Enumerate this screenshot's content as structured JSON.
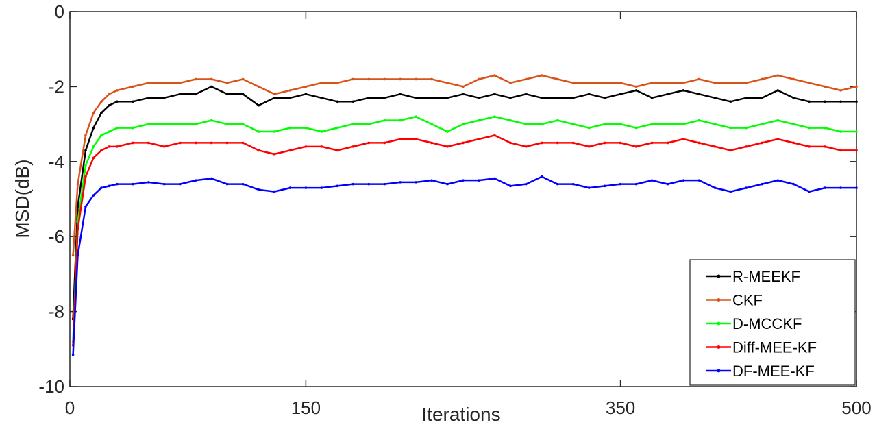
{
  "chart_data": {
    "type": "line",
    "xlabel": "Iterations",
    "ylabel": "MSD(dB)",
    "xlim": [
      0,
      500
    ],
    "ylim": [
      -10,
      0
    ],
    "xticks": [
      0,
      150,
      350,
      500
    ],
    "yticks": [
      -10,
      -8,
      -6,
      -4,
      -2,
      0
    ],
    "grid": false,
    "legend_position": "bottom-right",
    "series": [
      {
        "name": "R-MEEKF",
        "color": "#000000",
        "x": [
          2,
          5,
          10,
          15,
          20,
          25,
          30,
          40,
          50,
          60,
          70,
          80,
          90,
          100,
          110,
          120,
          130,
          140,
          150,
          160,
          170,
          180,
          190,
          200,
          210,
          220,
          230,
          240,
          250,
          260,
          270,
          280,
          290,
          300,
          310,
          320,
          330,
          340,
          350,
          360,
          370,
          380,
          390,
          400,
          410,
          420,
          430,
          440,
          450,
          460,
          470,
          480,
          490,
          500
        ],
        "values": [
          -8.2,
          -5.2,
          -3.7,
          -3.1,
          -2.7,
          -2.5,
          -2.4,
          -2.4,
          -2.3,
          -2.3,
          -2.2,
          -2.2,
          -2.0,
          -2.2,
          -2.2,
          -2.5,
          -2.3,
          -2.3,
          -2.2,
          -2.3,
          -2.4,
          -2.4,
          -2.3,
          -2.3,
          -2.2,
          -2.3,
          -2.3,
          -2.3,
          -2.2,
          -2.3,
          -2.2,
          -2.3,
          -2.2,
          -2.3,
          -2.3,
          -2.3,
          -2.2,
          -2.3,
          -2.2,
          -2.1,
          -2.3,
          -2.2,
          -2.1,
          -2.2,
          -2.3,
          -2.4,
          -2.3,
          -2.3,
          -2.1,
          -2.3,
          -2.4,
          -2.4,
          -2.4,
          -2.4
        ]
      },
      {
        "name": "CKF",
        "color": "#D95319",
        "x": [
          2,
          5,
          10,
          15,
          20,
          25,
          30,
          40,
          50,
          60,
          70,
          80,
          90,
          100,
          110,
          120,
          130,
          140,
          150,
          160,
          170,
          180,
          190,
          200,
          210,
          220,
          230,
          240,
          250,
          260,
          270,
          280,
          290,
          300,
          310,
          320,
          330,
          340,
          350,
          360,
          370,
          380,
          390,
          400,
          410,
          420,
          430,
          440,
          450,
          460,
          470,
          480,
          490,
          500
        ],
        "values": [
          -6.5,
          -4.6,
          -3.3,
          -2.7,
          -2.4,
          -2.2,
          -2.1,
          -2.0,
          -1.9,
          -1.9,
          -1.9,
          -1.8,
          -1.8,
          -1.9,
          -1.8,
          -2.0,
          -2.2,
          -2.1,
          -2.0,
          -1.9,
          -1.9,
          -1.8,
          -1.8,
          -1.8,
          -1.8,
          -1.8,
          -1.8,
          -1.9,
          -2.0,
          -1.8,
          -1.7,
          -1.9,
          -1.8,
          -1.7,
          -1.8,
          -1.9,
          -1.9,
          -1.9,
          -1.9,
          -2.0,
          -1.9,
          -1.9,
          -1.9,
          -1.8,
          -1.9,
          -1.9,
          -1.9,
          -1.8,
          -1.7,
          -1.8,
          -1.9,
          -2.0,
          -2.1,
          -2.0
        ]
      },
      {
        "name": "D-MCCKF",
        "color": "#00FF00",
        "x": [
          2,
          5,
          10,
          15,
          20,
          25,
          30,
          40,
          50,
          60,
          70,
          80,
          90,
          100,
          110,
          120,
          130,
          140,
          150,
          160,
          170,
          180,
          190,
          200,
          210,
          220,
          230,
          240,
          250,
          260,
          270,
          280,
          290,
          300,
          310,
          320,
          330,
          340,
          350,
          360,
          370,
          380,
          390,
          400,
          410,
          420,
          430,
          440,
          450,
          460,
          470,
          480,
          490,
          500
        ],
        "values": [
          -8.8,
          -5.6,
          -4.1,
          -3.6,
          -3.3,
          -3.2,
          -3.1,
          -3.1,
          -3.0,
          -3.0,
          -3.0,
          -3.0,
          -2.9,
          -3.0,
          -3.0,
          -3.2,
          -3.2,
          -3.1,
          -3.1,
          -3.2,
          -3.1,
          -3.0,
          -3.0,
          -2.9,
          -2.9,
          -2.8,
          -3.0,
          -3.2,
          -3.0,
          -2.9,
          -2.8,
          -2.9,
          -3.0,
          -3.0,
          -2.9,
          -3.0,
          -3.1,
          -3.0,
          -3.0,
          -3.1,
          -3.0,
          -3.0,
          -3.0,
          -2.9,
          -3.0,
          -3.1,
          -3.1,
          -3.0,
          -2.9,
          -3.0,
          -3.1,
          -3.1,
          -3.2,
          -3.2
        ]
      },
      {
        "name": "Diff-MEE-KF",
        "color": "#FF0000",
        "x": [
          2,
          5,
          10,
          15,
          20,
          25,
          30,
          40,
          50,
          60,
          70,
          80,
          90,
          100,
          110,
          120,
          130,
          140,
          150,
          160,
          170,
          180,
          190,
          200,
          210,
          220,
          230,
          240,
          250,
          260,
          270,
          280,
          290,
          300,
          310,
          320,
          330,
          340,
          350,
          360,
          370,
          380,
          390,
          400,
          410,
          420,
          430,
          440,
          450,
          460,
          470,
          480,
          490,
          500
        ],
        "values": [
          -8.9,
          -5.8,
          -4.4,
          -3.9,
          -3.7,
          -3.6,
          -3.6,
          -3.5,
          -3.5,
          -3.6,
          -3.5,
          -3.5,
          -3.5,
          -3.5,
          -3.5,
          -3.7,
          -3.8,
          -3.7,
          -3.6,
          -3.6,
          -3.7,
          -3.6,
          -3.5,
          -3.5,
          -3.4,
          -3.4,
          -3.5,
          -3.6,
          -3.5,
          -3.4,
          -3.3,
          -3.5,
          -3.6,
          -3.5,
          -3.5,
          -3.5,
          -3.6,
          -3.5,
          -3.5,
          -3.6,
          -3.5,
          -3.5,
          -3.4,
          -3.5,
          -3.6,
          -3.7,
          -3.6,
          -3.5,
          -3.4,
          -3.5,
          -3.6,
          -3.6,
          -3.7,
          -3.7
        ]
      },
      {
        "name": "DF-MEE-KF",
        "color": "#0000FF",
        "x": [
          2,
          5,
          10,
          15,
          20,
          25,
          30,
          40,
          50,
          60,
          70,
          80,
          90,
          100,
          110,
          120,
          130,
          140,
          150,
          160,
          170,
          180,
          190,
          200,
          210,
          220,
          230,
          240,
          250,
          260,
          270,
          280,
          290,
          300,
          310,
          320,
          330,
          340,
          350,
          360,
          370,
          380,
          390,
          400,
          410,
          420,
          430,
          440,
          450,
          460,
          470,
          480,
          490,
          500
        ],
        "values": [
          -9.15,
          -6.5,
          -5.2,
          -4.9,
          -4.7,
          -4.65,
          -4.6,
          -4.6,
          -4.55,
          -4.6,
          -4.6,
          -4.5,
          -4.45,
          -4.6,
          -4.6,
          -4.75,
          -4.8,
          -4.7,
          -4.7,
          -4.7,
          -4.65,
          -4.6,
          -4.6,
          -4.6,
          -4.55,
          -4.55,
          -4.5,
          -4.6,
          -4.5,
          -4.5,
          -4.45,
          -4.65,
          -4.6,
          -4.4,
          -4.6,
          -4.6,
          -4.7,
          -4.65,
          -4.6,
          -4.6,
          -4.5,
          -4.6,
          -4.5,
          -4.5,
          -4.7,
          -4.8,
          -4.7,
          -4.6,
          -4.5,
          -4.6,
          -4.8,
          -4.7,
          -4.7,
          -4.7
        ]
      }
    ]
  }
}
